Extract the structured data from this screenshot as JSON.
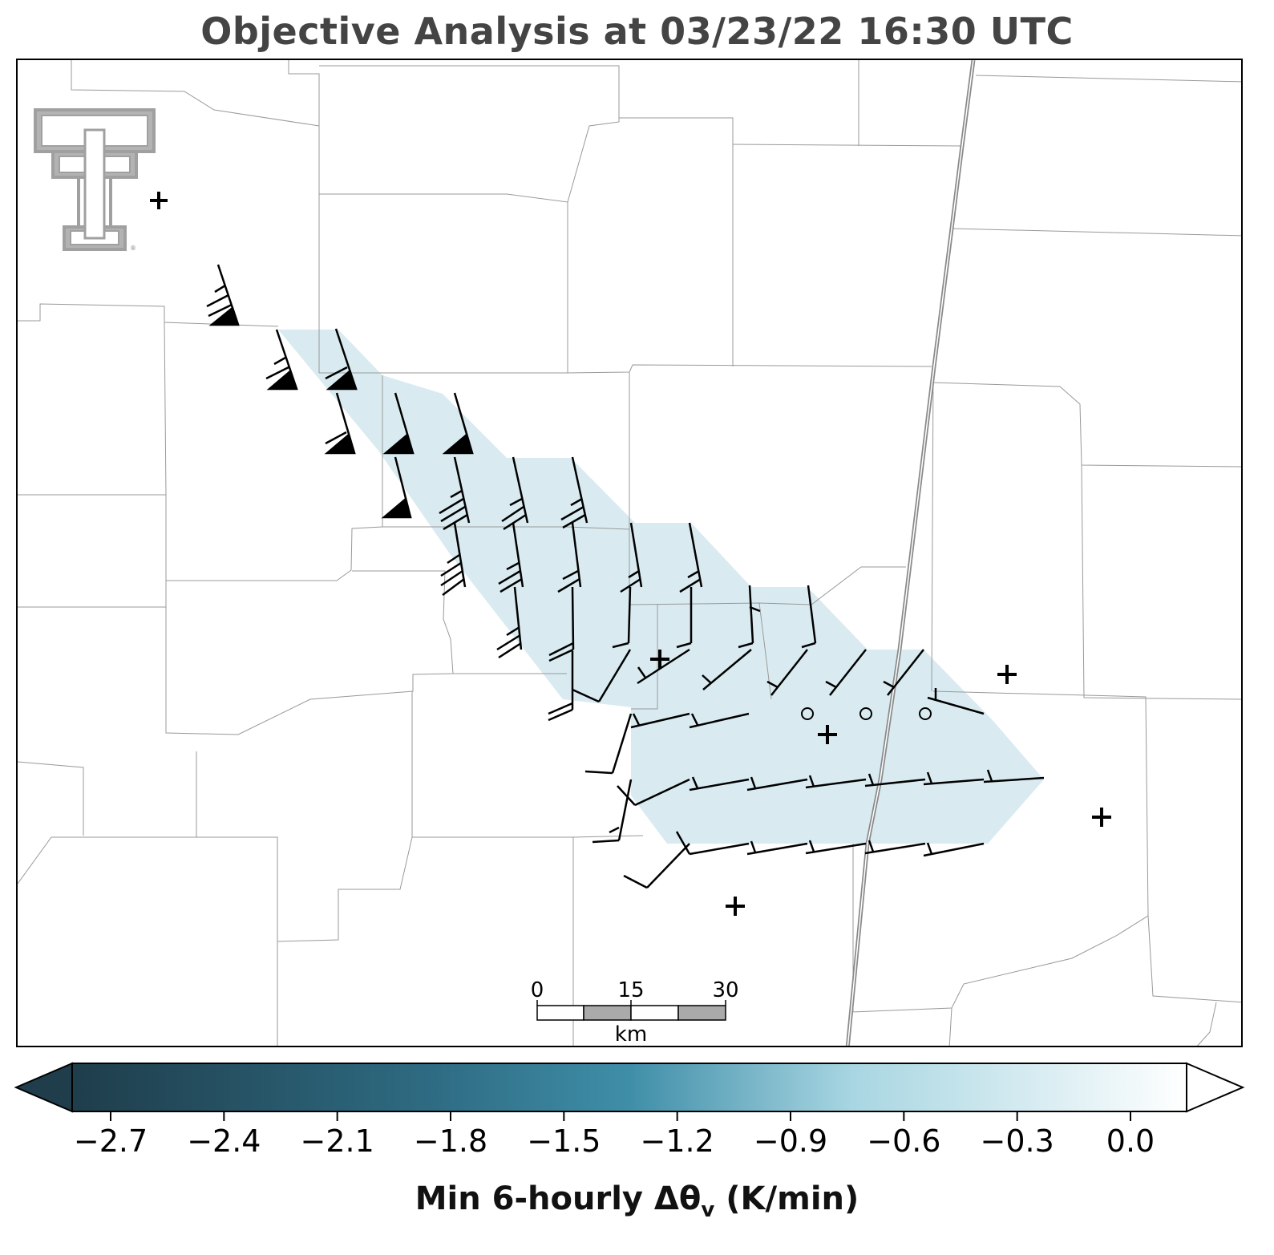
{
  "title": "Objective Analysis at 03/23/22 16:30 UTC",
  "map": {
    "logo": "texas-tech-double-t-logo",
    "logo_mark": "®",
    "scale_bar": {
      "ticks": [
        "0",
        "15",
        "30"
      ],
      "unit": "km"
    },
    "shading_color": "#d9ebf1",
    "county_line_color": "#999999",
    "state_line_color": "#8a8a8a",
    "station_markers": {
      "symbol": "+",
      "calm_symbol": "○"
    }
  },
  "colorbar": {
    "label_main": "Min 6-hourly Δθ",
    "label_sub": "v",
    "label_unit": " (K/min)",
    "ticks": [
      "−2.7",
      "−2.4",
      "−2.1",
      "−1.8",
      "−1.5",
      "−1.2",
      "−0.9",
      "−0.6",
      "−0.3",
      "0.0"
    ],
    "tick_values": [
      -2.7,
      -2.4,
      -2.1,
      -1.8,
      -1.5,
      -1.2,
      -0.9,
      -0.6,
      -0.3,
      0.0
    ],
    "color_dark": "#1f3d4b",
    "color_mid": "#3f8ea8",
    "color_light": "#a8d6e2",
    "color_end": "#ffffff"
  }
}
